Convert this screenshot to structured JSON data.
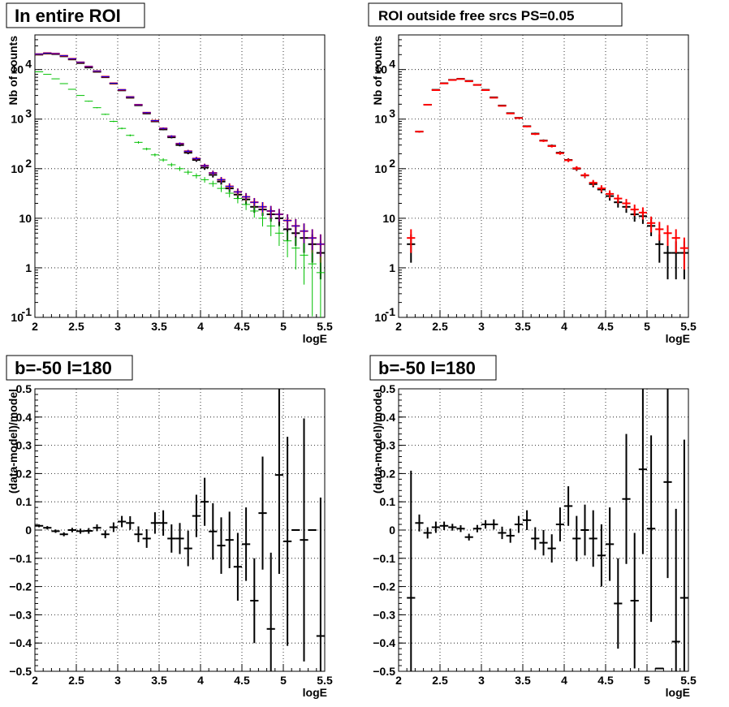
{
  "colors": {
    "data": "#000000",
    "total_model": "#0000ff",
    "model_points": "#ff0000",
    "component": "#00c000",
    "grid": "#000000"
  },
  "chart_data": [
    {
      "type": "scatter",
      "title": "In entire ROI",
      "xlabel": "logE",
      "ylabel": "Nb of counts",
      "xlim": [
        2,
        5.5
      ],
      "ylim": [
        0.1,
        50000
      ],
      "yscale": "log",
      "grid": true,
      "xticks": [
        "2",
        "2.5",
        "3",
        "3.5",
        "4",
        "4.5",
        "5",
        "5.5"
      ],
      "yticks": [
        {
          "v": 0.1,
          "base": "10",
          "exp": "-1"
        },
        {
          "v": 1,
          "base": "1",
          "exp": ""
        },
        {
          "v": 10,
          "base": "10",
          "exp": ""
        },
        {
          "v": 100,
          "base": "10",
          "exp": "2"
        },
        {
          "v": 1000,
          "base": "10",
          "exp": "3"
        },
        {
          "v": 10000,
          "base": "10",
          "exp": "4"
        }
      ],
      "x": [
        2.05,
        2.15,
        2.25,
        2.35,
        2.45,
        2.55,
        2.65,
        2.75,
        2.85,
        2.95,
        3.05,
        3.15,
        3.25,
        3.35,
        3.45,
        3.55,
        3.65,
        3.75,
        3.85,
        3.95,
        4.05,
        4.15,
        4.25,
        4.35,
        4.45,
        4.55,
        4.65,
        4.75,
        4.85,
        4.95,
        5.05,
        5.15,
        5.25,
        5.35,
        5.45
      ],
      "series": [
        {
          "style": "data",
          "color": "#000000",
          "values": [
            20000,
            21000,
            20500,
            18500,
            16000,
            13500,
            11000,
            9000,
            7000,
            5200,
            3800,
            2700,
            1900,
            1300,
            900,
            620,
            430,
            300,
            210,
            150,
            105,
            75,
            55,
            40,
            30,
            24,
            17,
            15,
            12,
            10,
            6,
            5,
            4,
            3,
            2
          ]
        },
        {
          "style": "model",
          "color": "#ff0000",
          "values": [
            20500,
            21500,
            21000,
            19000,
            16500,
            14000,
            11500,
            9300,
            7200,
            5300,
            3900,
            2800,
            1950,
            1350,
            930,
            650,
            450,
            320,
            225,
            160,
            115,
            82,
            60,
            44,
            34,
            27,
            21,
            17,
            14,
            12,
            9,
            7,
            5.5,
            4,
            3
          ]
        },
        {
          "style": "line",
          "color": "#0000ff",
          "values": [
            20500,
            21500,
            21000,
            19000,
            16500,
            14000,
            11500,
            9300,
            7200,
            5300,
            3900,
            2800,
            1950,
            1350,
            930,
            650,
            450,
            320,
            225,
            160,
            115,
            82,
            60,
            44,
            34,
            27,
            21,
            17,
            14,
            12,
            9,
            7,
            5.5,
            4,
            3
          ]
        },
        {
          "style": "line",
          "color": "#00c000",
          "values": [
            9000,
            8000,
            6500,
            5200,
            4000,
            3000,
            2300,
            1700,
            1250,
            900,
            650,
            470,
            340,
            250,
            190,
            150,
            120,
            100,
            85,
            72,
            60,
            50,
            40,
            32,
            25,
            19,
            14,
            10,
            7,
            5,
            3.5,
            2.5,
            1.8,
            1.2,
            0.8
          ]
        }
      ]
    },
    {
      "type": "scatter",
      "title": "ROI outside free srcs PS=0.05",
      "xlabel": "logE",
      "ylabel": "Nb of counts",
      "xlim": [
        2,
        5.5
      ],
      "ylim": [
        0.1,
        50000
      ],
      "yscale": "log",
      "grid": true,
      "xticks": [
        "2",
        "2.5",
        "3",
        "3.5",
        "4",
        "4.5",
        "5",
        "5.5"
      ],
      "yticks": [
        {
          "v": 0.1,
          "base": "10",
          "exp": "-1"
        },
        {
          "v": 1,
          "base": "1",
          "exp": ""
        },
        {
          "v": 10,
          "base": "10",
          "exp": ""
        },
        {
          "v": 100,
          "base": "10",
          "exp": "2"
        },
        {
          "v": 1000,
          "base": "10",
          "exp": "3"
        },
        {
          "v": 10000,
          "base": "10",
          "exp": "4"
        }
      ],
      "x": [
        2.15,
        2.25,
        2.35,
        2.45,
        2.55,
        2.65,
        2.75,
        2.85,
        2.95,
        3.05,
        3.15,
        3.25,
        3.35,
        3.45,
        3.55,
        3.65,
        3.75,
        3.85,
        3.95,
        4.05,
        4.15,
        4.25,
        4.35,
        4.45,
        4.55,
        4.65,
        4.75,
        4.85,
        4.95,
        5.05,
        5.15,
        5.25,
        5.35,
        5.45
      ],
      "series": [
        {
          "style": "data",
          "color": "#000000",
          "values": [
            3,
            560,
            1950,
            3900,
            5300,
            6200,
            6500,
            5900,
            4900,
            3900,
            2750,
            1880,
            1320,
            1060,
            720,
            510,
            370,
            290,
            210,
            150,
            100,
            73,
            49,
            38,
            28,
            21,
            17,
            12,
            11,
            7,
            3,
            2,
            2,
            2
          ]
        },
        {
          "style": "model",
          "color": "#ff0000",
          "values": [
            4,
            560,
            1950,
            3850,
            5250,
            6150,
            6450,
            5800,
            4900,
            3850,
            2700,
            1850,
            1300,
            1050,
            710,
            500,
            365,
            285,
            205,
            148,
            102,
            74,
            52,
            40,
            31,
            25,
            20,
            15,
            13,
            8,
            6,
            5,
            4,
            2.5
          ]
        }
      ]
    },
    {
      "type": "scatter",
      "title": "b=-50 l=180",
      "xlabel": "logE",
      "ylabel": "(data-model)/model",
      "xlim": [
        2,
        5.5
      ],
      "ylim": [
        -0.5,
        0.5
      ],
      "yscale": "linear",
      "grid": true,
      "xticks": [
        "2",
        "2.5",
        "3",
        "3.5",
        "4",
        "4.5",
        "5",
        "5.5"
      ],
      "yticks": [
        {
          "v": -0.5,
          "base": "−0.5",
          "exp": ""
        },
        {
          "v": -0.4,
          "base": "−0.4",
          "exp": ""
        },
        {
          "v": -0.3,
          "base": "−0.3",
          "exp": ""
        },
        {
          "v": -0.2,
          "base": "−0.2",
          "exp": ""
        },
        {
          "v": -0.1,
          "base": "−0.1",
          "exp": ""
        },
        {
          "v": 0,
          "base": "0",
          "exp": ""
        },
        {
          "v": 0.1,
          "base": "0.1",
          "exp": ""
        },
        {
          "v": 0.2,
          "base": "0.2",
          "exp": ""
        },
        {
          "v": 0.3,
          "base": "0.3",
          "exp": ""
        },
        {
          "v": 0.4,
          "base": "0.4",
          "exp": ""
        },
        {
          "v": 0.5,
          "base": "0.5",
          "exp": ""
        }
      ],
      "x": [
        2.05,
        2.15,
        2.25,
        2.35,
        2.45,
        2.55,
        2.65,
        2.75,
        2.85,
        2.95,
        3.05,
        3.15,
        3.25,
        3.35,
        3.45,
        3.55,
        3.65,
        3.75,
        3.85,
        3.95,
        4.05,
        4.15,
        4.25,
        4.35,
        4.45,
        4.55,
        4.65,
        4.75,
        4.85,
        4.95,
        5.05,
        5.15,
        5.25,
        5.35,
        5.45
      ],
      "series": [
        {
          "style": "data",
          "color": "#000000",
          "values": [
            0.015,
            0.008,
            -0.004,
            -0.015,
            0.0,
            -0.004,
            -0.003,
            0.008,
            -0.015,
            0.01,
            0.03,
            0.025,
            -0.015,
            -0.03,
            0.025,
            0.025,
            -0.03,
            -0.03,
            -0.065,
            0.05,
            0.1,
            -0.005,
            -0.055,
            -0.035,
            -0.13,
            -0.05,
            -0.25,
            0.06,
            -0.35,
            0.195,
            -0.04,
            0.0,
            -0.035,
            0.0,
            -0.375
          ],
          "err": [
            0.005,
            0.006,
            0.006,
            0.007,
            0.008,
            0.009,
            0.01,
            0.012,
            0.014,
            0.017,
            0.02,
            0.024,
            0.028,
            0.033,
            0.038,
            0.045,
            0.05,
            0.055,
            0.063,
            0.075,
            0.085,
            0.1,
            0.1,
            0.1,
            0.12,
            0.13,
            0.15,
            0.2,
            0.27,
            0.35,
            0.37,
            0.0,
            0.43,
            0.0,
            0.49
          ]
        }
      ]
    },
    {
      "type": "scatter",
      "title": "b=-50 l=180",
      "xlabel": "logE",
      "ylabel": "(data-model)/model",
      "xlim": [
        2,
        5.5
      ],
      "ylim": [
        -0.5,
        0.5
      ],
      "yscale": "linear",
      "grid": true,
      "xticks": [
        "2",
        "2.5",
        "3",
        "3.5",
        "4",
        "4.5",
        "5",
        "5.5"
      ],
      "yticks": [
        {
          "v": -0.5,
          "base": "−0.5",
          "exp": ""
        },
        {
          "v": -0.4,
          "base": "−0.4",
          "exp": ""
        },
        {
          "v": -0.3,
          "base": "−0.3",
          "exp": ""
        },
        {
          "v": -0.2,
          "base": "−0.2",
          "exp": ""
        },
        {
          "v": -0.1,
          "base": "−0.1",
          "exp": ""
        },
        {
          "v": 0,
          "base": "0",
          "exp": ""
        },
        {
          "v": 0.1,
          "base": "0.1",
          "exp": ""
        },
        {
          "v": 0.2,
          "base": "0.2",
          "exp": ""
        },
        {
          "v": 0.3,
          "base": "0.3",
          "exp": ""
        },
        {
          "v": 0.4,
          "base": "0.4",
          "exp": ""
        },
        {
          "v": 0.5,
          "base": "0.5",
          "exp": ""
        }
      ],
      "x": [
        2.15,
        2.25,
        2.35,
        2.45,
        2.55,
        2.65,
        2.75,
        2.85,
        2.95,
        3.05,
        3.15,
        3.25,
        3.35,
        3.45,
        3.55,
        3.65,
        3.75,
        3.85,
        3.95,
        4.05,
        4.15,
        4.25,
        4.35,
        4.45,
        4.55,
        4.65,
        4.75,
        4.85,
        4.95,
        5.05,
        5.15,
        5.25,
        5.35,
        5.45
      ],
      "series": [
        {
          "style": "data",
          "color": "#000000",
          "values": [
            -0.24,
            0.025,
            -0.01,
            0.01,
            0.015,
            0.01,
            0.005,
            -0.025,
            0.005,
            0.02,
            0.02,
            -0.01,
            -0.02,
            0.02,
            0.035,
            -0.03,
            -0.045,
            -0.065,
            0.02,
            0.085,
            -0.03,
            0.0,
            -0.03,
            -0.09,
            -0.05,
            -0.26,
            0.11,
            -0.25,
            0.215,
            0.005,
            -0.49,
            0.17,
            -0.395,
            -0.24
          ],
          "err": [
            0.45,
            0.03,
            0.02,
            0.02,
            0.015,
            0.012,
            0.012,
            0.012,
            0.013,
            0.015,
            0.018,
            0.022,
            0.025,
            0.03,
            0.035,
            0.04,
            0.045,
            0.05,
            0.06,
            0.07,
            0.08,
            0.09,
            0.1,
            0.11,
            0.13,
            0.16,
            0.23,
            0.24,
            0.3,
            0.33,
            0.0,
            0.34,
            0.47,
            0.56
          ]
        }
      ]
    }
  ]
}
